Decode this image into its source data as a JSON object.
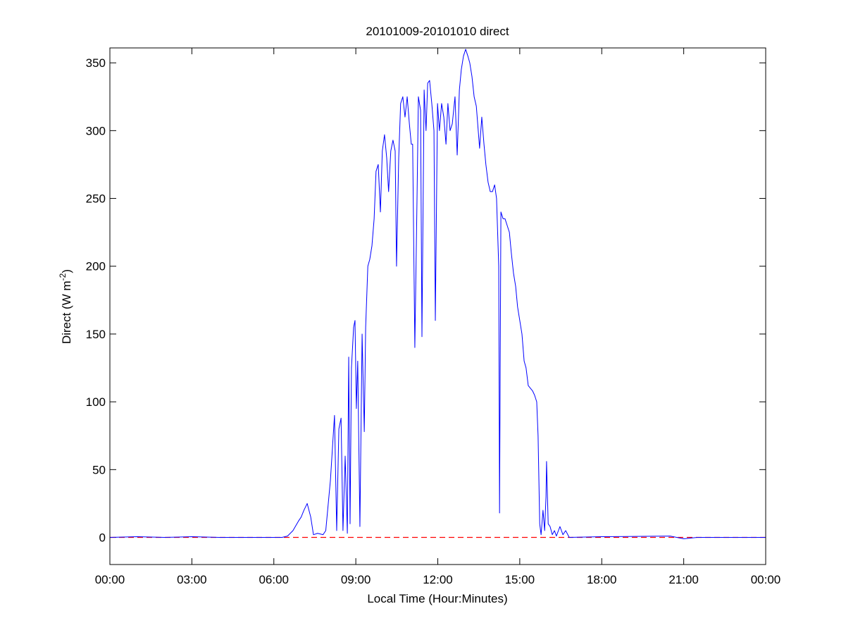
{
  "chart_data": {
    "type": "line",
    "title": "20101009-20101010 direct",
    "xlabel": "Local Time (Hour:Minutes)",
    "ylabel": {
      "text": "Direct (W m",
      "superscript": "-2",
      "suffix": ")"
    },
    "xlim": [
      0,
      24
    ],
    "xticks": [
      {
        "value": 0,
        "label": "00:00"
      },
      {
        "value": 3,
        "label": "03:00"
      },
      {
        "value": 6,
        "label": "06:00"
      },
      {
        "value": 9,
        "label": "09:00"
      },
      {
        "value": 12,
        "label": "12:00"
      },
      {
        "value": 15,
        "label": "15:00"
      },
      {
        "value": 18,
        "label": "18:00"
      },
      {
        "value": 21,
        "label": "21:00"
      },
      {
        "value": 24,
        "label": "00:00"
      }
    ],
    "ylim": [
      -20,
      361
    ],
    "yticks": [
      0,
      50,
      100,
      150,
      200,
      250,
      300,
      350
    ],
    "grid": false,
    "x": [
      0,
      1,
      2,
      3,
      4,
      5,
      6,
      6.3,
      6.5,
      6.7,
      6.9,
      7.0,
      7.1,
      7.22,
      7.35,
      7.45,
      7.6,
      7.8,
      7.9,
      8.07,
      8.22,
      8.3,
      8.38,
      8.46,
      8.53,
      8.61,
      8.69,
      8.74,
      8.79,
      8.84,
      8.92,
      8.97,
      9.02,
      9.07,
      9.15,
      9.23,
      9.31,
      9.36,
      9.44,
      9.51,
      9.59,
      9.67,
      9.74,
      9.82,
      9.9,
      9.97,
      10.05,
      10.13,
      10.2,
      10.28,
      10.36,
      10.44,
      10.49,
      10.57,
      10.64,
      10.72,
      10.8,
      10.88,
      10.96,
      11.03,
      11.08,
      11.16,
      11.24,
      11.29,
      11.37,
      11.42,
      11.5,
      11.57,
      11.63,
      11.7,
      11.78,
      11.86,
      11.91,
      11.99,
      12.06,
      12.14,
      12.22,
      12.3,
      12.37,
      12.45,
      12.53,
      12.63,
      12.71,
      12.79,
      12.86,
      12.94,
      13.02,
      13.1,
      13.17,
      13.25,
      13.33,
      13.41,
      13.48,
      13.53,
      13.61,
      13.69,
      13.76,
      13.84,
      13.92,
      14.0,
      14.08,
      14.15,
      14.23,
      14.26,
      14.31,
      14.39,
      14.46,
      14.54,
      14.62,
      14.69,
      14.77,
      14.85,
      14.92,
      15.0,
      15.08,
      15.16,
      15.23,
      15.31,
      15.39,
      15.47,
      15.54,
      15.62,
      15.67,
      15.73,
      15.78,
      15.85,
      15.91,
      15.96,
      15.98,
      16.04,
      16.11,
      16.19,
      16.27,
      16.34,
      16.47,
      16.58,
      16.68,
      16.81,
      18,
      20.5,
      21,
      21.5,
      24
    ],
    "series": [
      {
        "color": "#0000ff",
        "values": [
          0,
          0.5,
          0,
          0.5,
          0,
          0,
          0,
          0,
          1,
          5,
          12,
          15,
          20,
          25,
          15,
          2,
          3,
          2,
          5,
          42,
          90,
          5,
          80,
          88,
          5,
          60,
          3,
          133,
          10,
          125,
          155,
          160,
          95,
          130,
          8,
          150,
          78,
          155,
          200,
          205,
          215,
          235,
          270,
          275,
          240,
          285,
          297,
          280,
          255,
          285,
          293,
          285,
          200,
          280,
          320,
          325,
          310,
          325,
          305,
          290,
          290,
          140,
          250,
          325,
          315,
          148,
          330,
          300,
          335,
          337,
          320,
          300,
          160,
          320,
          300,
          320,
          310,
          290,
          320,
          300,
          305,
          325,
          282,
          330,
          345,
          355,
          360,
          355,
          350,
          340,
          325,
          318,
          300,
          287,
          310,
          290,
          275,
          262,
          255,
          255,
          260,
          250,
          200,
          18,
          240,
          235,
          235,
          230,
          225,
          210,
          195,
          185,
          170,
          160,
          150,
          130,
          125,
          112,
          110,
          108,
          105,
          100,
          75,
          10,
          2,
          20,
          5,
          30,
          56,
          10,
          8,
          2,
          5,
          1,
          8,
          2,
          5,
          0,
          0.5,
          1,
          -1,
          0,
          0
        ]
      }
    ],
    "hlines": [
      {
        "value": 0,
        "color": "#ff0000",
        "dashed": true
      }
    ]
  }
}
